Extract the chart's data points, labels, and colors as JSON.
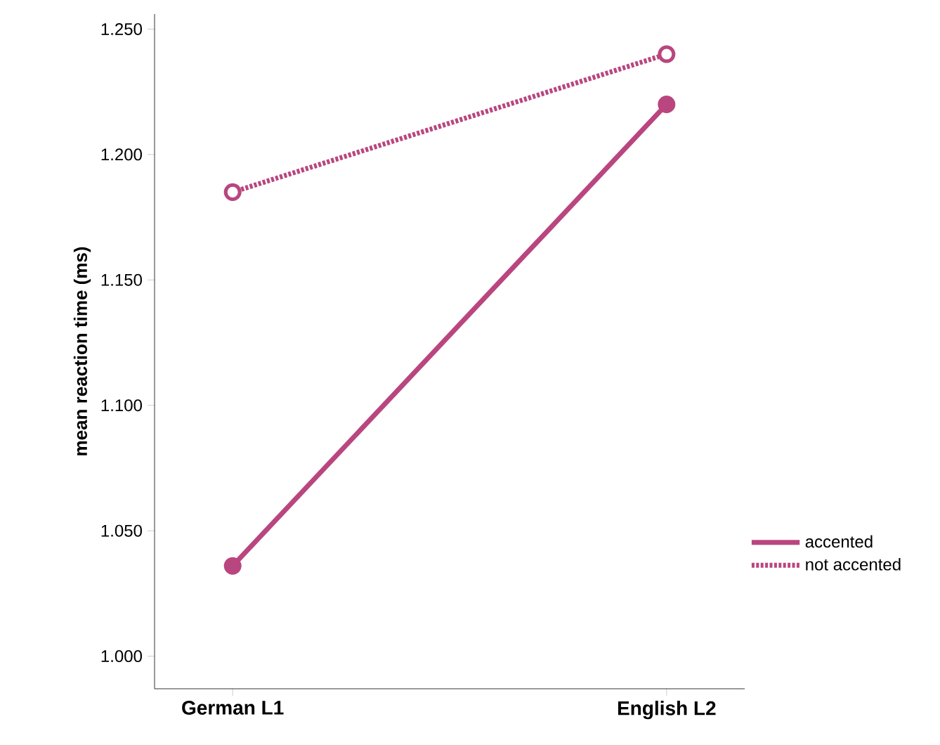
{
  "chart_data": {
    "type": "line",
    "ylabel": "mean reaction time (ms)",
    "categories": [
      "German L1",
      "English L2"
    ],
    "series": [
      {
        "name": "accented",
        "color": "#b9467f",
        "values": [
          1.036,
          1.22
        ],
        "line_style": "solid",
        "marker": "circle"
      },
      {
        "name": "not accented",
        "color": "#b9467f",
        "values": [
          1.185,
          1.24
        ],
        "line_style": "dotted",
        "marker": "circle"
      }
    ],
    "ylim": [
      0.987,
      1.256
    ],
    "yticks": [
      {
        "value": 1.0,
        "label": "1.000"
      },
      {
        "value": 1.05,
        "label": "1.050"
      },
      {
        "value": 1.1,
        "label": "1.100"
      },
      {
        "value": 1.15,
        "label": "1.150"
      },
      {
        "value": 1.2,
        "label": "1.200"
      },
      {
        "value": 1.25,
        "label": "1.250"
      }
    ],
    "grid": false,
    "legend": "right"
  }
}
